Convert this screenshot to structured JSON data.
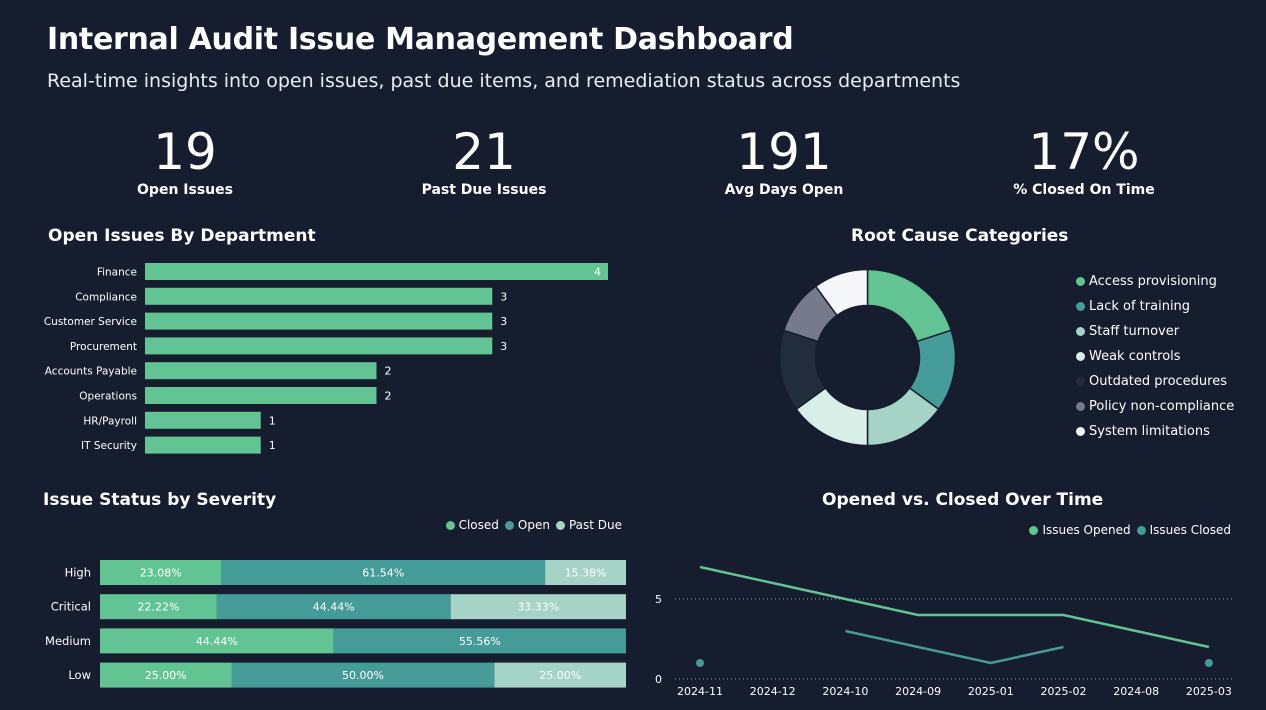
{
  "header": {
    "title": "Internal Audit Issue Management Dashboard",
    "subtitle": "Real-time insights into open issues, past due items, and remediation status across departments"
  },
  "kpis": [
    {
      "value": "19",
      "label": "Open Issues"
    },
    {
      "value": "21",
      "label": "Past Due Issues"
    },
    {
      "value": "191",
      "label": "Avg Days Open"
    },
    {
      "value": "17%",
      "label": "% Closed On Time"
    }
  ],
  "colors": {
    "green": "#62c393",
    "teal": "#449b98",
    "light": "#a5d3c6",
    "pale": "#daeee8",
    "dark": "#222d3b",
    "slate": "#767a8a",
    "white": "#f5f6fa"
  },
  "chart_data": [
    {
      "type": "bar",
      "orientation": "horizontal",
      "title": "Open Issues By Department",
      "categories": [
        "Finance",
        "Compliance",
        "Customer Service",
        "Procurement",
        "Accounts Payable",
        "Operations",
        "HR/Payroll",
        "IT Security"
      ],
      "values": [
        4,
        3,
        3,
        3,
        2,
        2,
        1,
        1
      ],
      "xlim": [
        0,
        4
      ]
    },
    {
      "type": "pie",
      "variant": "donut",
      "title": "Root Cause Categories",
      "labels": [
        "Access provisioning",
        "Lack of training",
        "Staff turnover",
        "Weak controls",
        "Outdated procedures",
        "Policy non-compliance",
        "System limitations"
      ],
      "values": [
        4,
        3,
        3,
        3,
        3,
        2,
        2
      ],
      "colors": [
        "#62c393",
        "#449b98",
        "#a5d3c6",
        "#daeee8",
        "#222d3b",
        "#767a8a",
        "#f5f6fa"
      ],
      "legend": "right"
    },
    {
      "type": "bar",
      "variant": "stacked-100-horizontal",
      "title": "Issue Status by Severity",
      "categories": [
        "High",
        "Critical",
        "Medium",
        "Low"
      ],
      "series": [
        {
          "name": "Closed",
          "values": [
            23.08,
            22.22,
            44.44,
            25.0
          ],
          "labels": [
            "23.08%",
            "22.22%",
            "44.44%",
            "25.00%"
          ]
        },
        {
          "name": "Open",
          "values": [
            61.54,
            44.44,
            55.56,
            50.0
          ],
          "labels": [
            "61.54%",
            "44.44%",
            "55.56%",
            "50.00%"
          ]
        },
        {
          "name": "Past Due",
          "values": [
            15.38,
            33.33,
            0,
            25.0
          ],
          "labels": [
            "15.38%",
            "33.33%",
            "",
            "25.00%"
          ]
        }
      ],
      "legend": "top-right"
    },
    {
      "type": "line",
      "title": "Opened vs. Closed Over Time",
      "x": [
        "2024-11",
        "2024-12",
        "2024-10",
        "2024-09",
        "2025-01",
        "2025-02",
        "2024-08",
        "2025-03"
      ],
      "series": [
        {
          "name": "Issues Opened",
          "values": [
            7,
            6,
            5,
            4,
            4,
            4,
            3,
            2
          ]
        },
        {
          "name": "Issues Closed",
          "values": [
            1,
            null,
            3,
            2,
            1,
            2,
            null,
            1
          ]
        }
      ],
      "yticks": [
        0,
        5
      ],
      "ylim": [
        0,
        8
      ],
      "legend": "top-right"
    }
  ]
}
